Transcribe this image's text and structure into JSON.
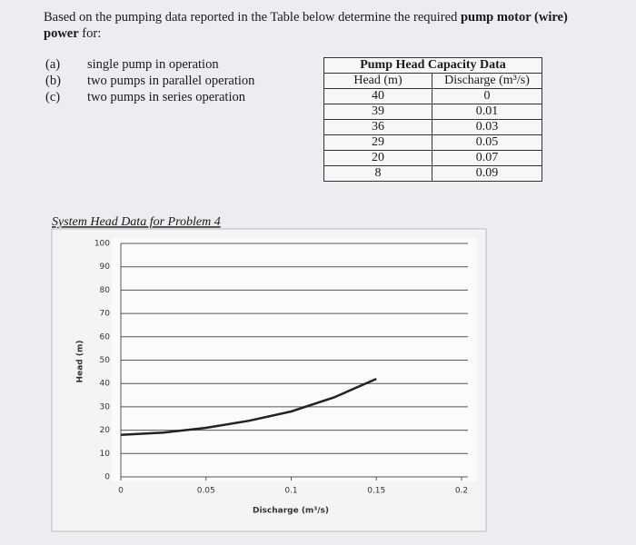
{
  "question": {
    "intro": "Based on the pumping data reported in the Table below determine the required ",
    "bold": "pump motor (wire) power",
    "end": " for:"
  },
  "items": [
    {
      "label": "(a)",
      "text": "single pump in operation"
    },
    {
      "label": "(b)",
      "text": "two pumps in parallel operation"
    },
    {
      "label": "(c)",
      "text": "two pumps in series operation"
    }
  ],
  "table": {
    "title": "Pump Head Capacity Data",
    "columns": [
      "Head (m)",
      "Discharge (m³/s)"
    ],
    "rows": [
      [
        40,
        0
      ],
      [
        39,
        0.01
      ],
      [
        36,
        0.03
      ],
      [
        29,
        0.05
      ],
      [
        20,
        0.07
      ],
      [
        8,
        0.09
      ]
    ]
  },
  "chart_data": {
    "type": "line",
    "title": "System Head Data for Problem 4",
    "x_label": "Discharge (m³/s)",
    "y_label": "Head (m)",
    "x": [
      0,
      0.025,
      0.05,
      0.075,
      0.1,
      0.125,
      0.15
    ],
    "values": [
      18,
      19,
      21,
      24,
      28,
      34,
      42
    ],
    "color": "#222222",
    "xlim": [
      0,
      0.2
    ],
    "ylim": [
      0,
      100
    ],
    "xticks": [
      0,
      0.05,
      0.1,
      0.15,
      0.2
    ],
    "yticks": [
      0,
      10,
      20,
      30,
      40,
      50,
      60,
      70,
      80,
      90,
      100
    ],
    "grid": true
  }
}
